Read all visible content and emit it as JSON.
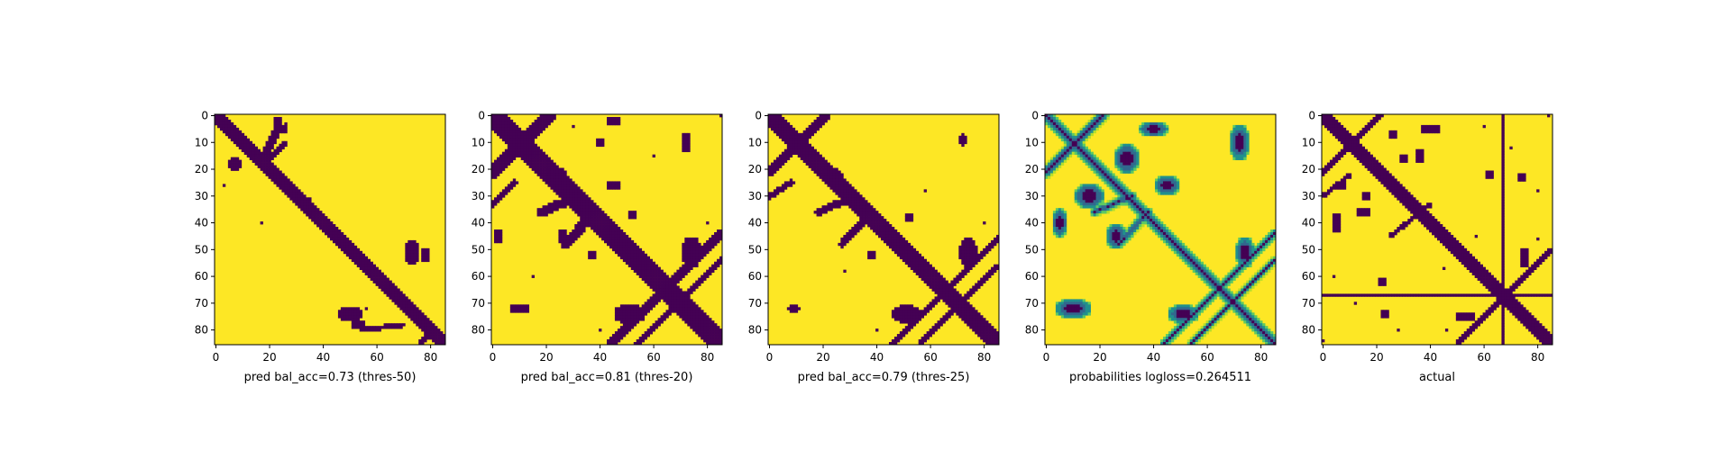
{
  "colors": {
    "low": "#440154",
    "mid_low": "#31688e",
    "mid": "#21908d",
    "mid_high": "#5ec962",
    "high": "#fde725"
  },
  "chart_data": [
    {
      "type": "heatmap",
      "xlabel": "pred bal_acc=0.73 (thres-50)",
      "matrix_size": 86,
      "xlim": [
        0,
        85
      ],
      "ylim": [
        85,
        0
      ],
      "xticks": [
        0,
        20,
        40,
        60,
        80
      ],
      "yticks": [
        0,
        10,
        20,
        30,
        40,
        50,
        60,
        70,
        80
      ],
      "colormap": "viridis",
      "binary": true,
      "diagonal": {
        "width": 3,
        "step_pattern": true
      },
      "offdiag_bands": [
        {
          "start": [
            17,
            17
          ],
          "end": [
            23,
            5
          ],
          "width": 1.5
        },
        {
          "start": [
            20,
            16
          ],
          "end": [
            26,
            10
          ],
          "width": 1
        },
        {
          "start": [
            54,
            80
          ],
          "end": [
            70,
            78
          ],
          "width": 1
        },
        {
          "start": [
            76,
            85
          ],
          "end": [
            82,
            79
          ],
          "width": 1
        }
      ],
      "blobs": [
        {
          "cx": 7,
          "cy": 18,
          "rx": 3,
          "ry": 2.5
        },
        {
          "cx": 23,
          "cy": 3,
          "rx": 2,
          "ry": 3
        },
        {
          "cx": 25,
          "cy": 5,
          "rx": 1.5,
          "ry": 2
        },
        {
          "cx": 73,
          "cy": 51,
          "rx": 3,
          "ry": 5
        },
        {
          "cx": 50,
          "cy": 74,
          "rx": 5,
          "ry": 3
        },
        {
          "cx": 78,
          "cy": 52,
          "rx": 2,
          "ry": 3
        },
        {
          "cx": 53,
          "cy": 78,
          "rx": 3,
          "ry": 2
        }
      ],
      "dots": [
        [
          3,
          26
        ],
        [
          26,
          3
        ],
        [
          17,
          40
        ],
        [
          35,
          31
        ],
        [
          56,
          72
        ],
        [
          60,
          80
        ]
      ],
      "full_lines": []
    },
    {
      "type": "heatmap",
      "xlabel": "pred bal_acc=0.81 (thres-20)",
      "matrix_size": 86,
      "xlim": [
        0,
        85
      ],
      "ylim": [
        85,
        0
      ],
      "xticks": [
        0,
        20,
        40,
        60,
        80
      ],
      "yticks": [
        0,
        10,
        20,
        30,
        40,
        50,
        60,
        70,
        80
      ],
      "colormap": "viridis",
      "binary": true,
      "diagonal": {
        "width": 4,
        "step_pattern": true
      },
      "offdiag_bands": [
        {
          "start": [
            0,
            21
          ],
          "end": [
            21,
            0
          ],
          "width": 2.5
        },
        {
          "start": [
            18,
            36
          ],
          "end": [
            32,
            30
          ],
          "width": 2
        },
        {
          "start": [
            27,
            48
          ],
          "end": [
            38,
            36
          ],
          "width": 2
        },
        {
          "start": [
            44,
            85
          ],
          "end": [
            85,
            44
          ],
          "width": 2
        },
        {
          "start": [
            54,
            85
          ],
          "end": [
            85,
            54
          ],
          "width": 1.5
        },
        {
          "start": [
            0,
            33
          ],
          "end": [
            8,
            25
          ],
          "width": 1.5
        }
      ],
      "blobs": [
        {
          "cx": 24,
          "cy": 23,
          "rx": 4,
          "ry": 4
        },
        {
          "cx": 36,
          "cy": 36,
          "rx": 4,
          "ry": 4
        },
        {
          "cx": 66,
          "cy": 66,
          "rx": 4,
          "ry": 4
        },
        {
          "cx": 74,
          "cy": 51,
          "rx": 4,
          "ry": 6
        },
        {
          "cx": 51,
          "cy": 74,
          "rx": 6,
          "ry": 4
        },
        {
          "cx": 45,
          "cy": 26,
          "rx": 3,
          "ry": 2
        },
        {
          "cx": 26,
          "cy": 45,
          "rx": 2,
          "ry": 3
        },
        {
          "cx": 52,
          "cy": 37,
          "rx": 2,
          "ry": 2
        },
        {
          "cx": 37,
          "cy": 52,
          "rx": 2,
          "ry": 2
        },
        {
          "cx": 72,
          "cy": 10,
          "rx": 2,
          "ry": 4
        },
        {
          "cx": 10,
          "cy": 72,
          "rx": 4,
          "ry": 2
        },
        {
          "cx": 2,
          "cy": 45,
          "rx": 2,
          "ry": 3
        },
        {
          "cx": 45,
          "cy": 2,
          "rx": 3,
          "ry": 2
        },
        {
          "cx": 40,
          "cy": 10,
          "rx": 2,
          "ry": 1.5
        }
      ],
      "dots": [
        [
          13,
          5
        ],
        [
          5,
          13
        ],
        [
          60,
          15
        ],
        [
          15,
          60
        ],
        [
          80,
          40
        ],
        [
          40,
          80
        ],
        [
          4,
          30
        ],
        [
          30,
          4
        ],
        [
          85,
          0
        ]
      ],
      "full_lines": []
    },
    {
      "type": "heatmap",
      "xlabel": "pred bal_acc=0.79 (thres-25)",
      "matrix_size": 86,
      "xlim": [
        0,
        85
      ],
      "ylim": [
        85,
        0
      ],
      "xticks": [
        0,
        20,
        40,
        60,
        80
      ],
      "yticks": [
        0,
        10,
        20,
        30,
        40,
        50,
        60,
        70,
        80
      ],
      "colormap": "viridis",
      "binary": true,
      "diagonal": {
        "width": 3.5,
        "step_pattern": true
      },
      "offdiag_bands": [
        {
          "start": [
            0,
            21
          ],
          "end": [
            21,
            0
          ],
          "width": 2
        },
        {
          "start": [
            18,
            36
          ],
          "end": [
            32,
            30
          ],
          "width": 1.5
        },
        {
          "start": [
            27,
            48
          ],
          "end": [
            38,
            36
          ],
          "width": 1.5
        },
        {
          "start": [
            46,
            85
          ],
          "end": [
            85,
            46
          ],
          "width": 1.5
        },
        {
          "start": [
            56,
            85
          ],
          "end": [
            85,
            56
          ],
          "width": 1
        },
        {
          "start": [
            0,
            30
          ],
          "end": [
            8,
            25
          ],
          "width": 1.2
        }
      ],
      "blobs": [
        {
          "cx": 24,
          "cy": 23,
          "rx": 3.5,
          "ry": 3.5
        },
        {
          "cx": 36,
          "cy": 36,
          "rx": 3.5,
          "ry": 3.5
        },
        {
          "cx": 66,
          "cy": 66,
          "rx": 3.5,
          "ry": 3.5
        },
        {
          "cx": 74,
          "cy": 51,
          "rx": 3.5,
          "ry": 5.5
        },
        {
          "cx": 51,
          "cy": 74,
          "rx": 5.5,
          "ry": 3.5
        },
        {
          "cx": 72,
          "cy": 9,
          "rx": 1.5,
          "ry": 2.5
        },
        {
          "cx": 9,
          "cy": 72,
          "rx": 2.5,
          "ry": 1.5
        },
        {
          "cx": 52,
          "cy": 38,
          "rx": 2,
          "ry": 2
        },
        {
          "cx": 38,
          "cy": 52,
          "rx": 2,
          "ry": 2
        }
      ],
      "dots": [
        [
          14,
          5
        ],
        [
          5,
          14
        ],
        [
          58,
          28
        ],
        [
          28,
          58
        ],
        [
          80,
          40
        ],
        [
          40,
          80
        ]
      ],
      "full_lines": []
    },
    {
      "type": "heatmap",
      "xlabel": "probabilities logloss=0.264511",
      "matrix_size": 86,
      "xlim": [
        0,
        85
      ],
      "ylim": [
        85,
        0
      ],
      "xticks": [
        0,
        20,
        40,
        60,
        80
      ],
      "yticks": [
        0,
        10,
        20,
        30,
        40,
        50,
        60,
        70,
        80
      ],
      "colormap": "viridis",
      "binary": false,
      "diagonal": {
        "width": 2.5,
        "step_pattern": false
      },
      "offdiag_bands": [
        {
          "start": [
            0,
            21
          ],
          "end": [
            21,
            0
          ],
          "width": 2.5
        },
        {
          "start": [
            18,
            36
          ],
          "end": [
            32,
            30
          ],
          "width": 2
        },
        {
          "start": [
            27,
            48
          ],
          "end": [
            38,
            36
          ],
          "width": 2
        },
        {
          "start": [
            44,
            85
          ],
          "end": [
            85,
            44
          ],
          "width": 2
        },
        {
          "start": [
            54,
            85
          ],
          "end": [
            85,
            54
          ],
          "width": 1.5
        }
      ],
      "blobs": [
        {
          "cx": 74,
          "cy": 51,
          "rx": 4,
          "ry": 6
        },
        {
          "cx": 51,
          "cy": 74,
          "rx": 6,
          "ry": 4
        },
        {
          "cx": 16,
          "cy": 30,
          "rx": 6,
          "ry": 5
        },
        {
          "cx": 30,
          "cy": 16,
          "rx": 5,
          "ry": 6
        },
        {
          "cx": 72,
          "cy": 10,
          "rx": 4,
          "ry": 7
        },
        {
          "cx": 10,
          "cy": 72,
          "rx": 7,
          "ry": 4
        },
        {
          "cx": 45,
          "cy": 26,
          "rx": 5,
          "ry": 4
        },
        {
          "cx": 26,
          "cy": 45,
          "rx": 4,
          "ry": 5
        },
        {
          "cx": 40,
          "cy": 5,
          "rx": 6,
          "ry": 3
        },
        {
          "cx": 5,
          "cy": 40,
          "rx": 3,
          "ry": 6
        }
      ],
      "dots": [],
      "full_lines": []
    },
    {
      "type": "heatmap",
      "xlabel": "actual",
      "matrix_size": 86,
      "xlim": [
        0,
        85
      ],
      "ylim": [
        85,
        0
      ],
      "xticks": [
        0,
        20,
        40,
        60,
        80
      ],
      "yticks": [
        0,
        10,
        20,
        30,
        40,
        50,
        60,
        70,
        80
      ],
      "colormap": "viridis",
      "binary": true,
      "diagonal": {
        "width": 2.5,
        "step_pattern": true
      },
      "offdiag_bands": [
        {
          "start": [
            0,
            21
          ],
          "end": [
            21,
            0
          ],
          "width": 1.5
        },
        {
          "start": [
            25,
            45
          ],
          "end": [
            40,
            33
          ],
          "width": 1
        },
        {
          "start": [
            50,
            85
          ],
          "end": [
            85,
            50
          ],
          "width": 1
        },
        {
          "start": [
            0,
            30
          ],
          "end": [
            10,
            22
          ],
          "width": 1
        }
      ],
      "blobs": [
        {
          "cx": 36,
          "cy": 36,
          "rx": 3,
          "ry": 3
        },
        {
          "cx": 75,
          "cy": 53,
          "rx": 2,
          "ry": 4
        },
        {
          "cx": 53,
          "cy": 75,
          "rx": 4,
          "ry": 2
        },
        {
          "cx": 15,
          "cy": 36,
          "rx": 3,
          "ry": 2
        },
        {
          "cx": 36,
          "cy": 15,
          "rx": 2,
          "ry": 3
        },
        {
          "cx": 5,
          "cy": 40,
          "rx": 2,
          "ry": 4
        },
        {
          "cx": 40,
          "cy": 5,
          "rx": 4,
          "ry": 2
        },
        {
          "cx": 30,
          "cy": 16,
          "rx": 2,
          "ry": 2
        },
        {
          "cx": 16,
          "cy": 30,
          "rx": 2,
          "ry": 2
        },
        {
          "cx": 62,
          "cy": 22,
          "rx": 2,
          "ry": 2
        },
        {
          "cx": 22,
          "cy": 62,
          "rx": 2,
          "ry": 2
        },
        {
          "cx": 74,
          "cy": 23,
          "rx": 1.5,
          "ry": 2
        },
        {
          "cx": 23,
          "cy": 74,
          "rx": 2,
          "ry": 1.5
        },
        {
          "cx": 26,
          "cy": 7,
          "rx": 1.5,
          "ry": 2
        },
        {
          "cx": 7,
          "cy": 26,
          "rx": 2,
          "ry": 1.5
        }
      ],
      "dots": [
        [
          84,
          0
        ],
        [
          0,
          84
        ],
        [
          60,
          4
        ],
        [
          4,
          60
        ],
        [
          80,
          46
        ],
        [
          46,
          80
        ],
        [
          45,
          57
        ],
        [
          57,
          45
        ],
        [
          70,
          12
        ],
        [
          12,
          70
        ],
        [
          80,
          28
        ],
        [
          28,
          80
        ]
      ],
      "full_lines": [
        67
      ]
    }
  ]
}
